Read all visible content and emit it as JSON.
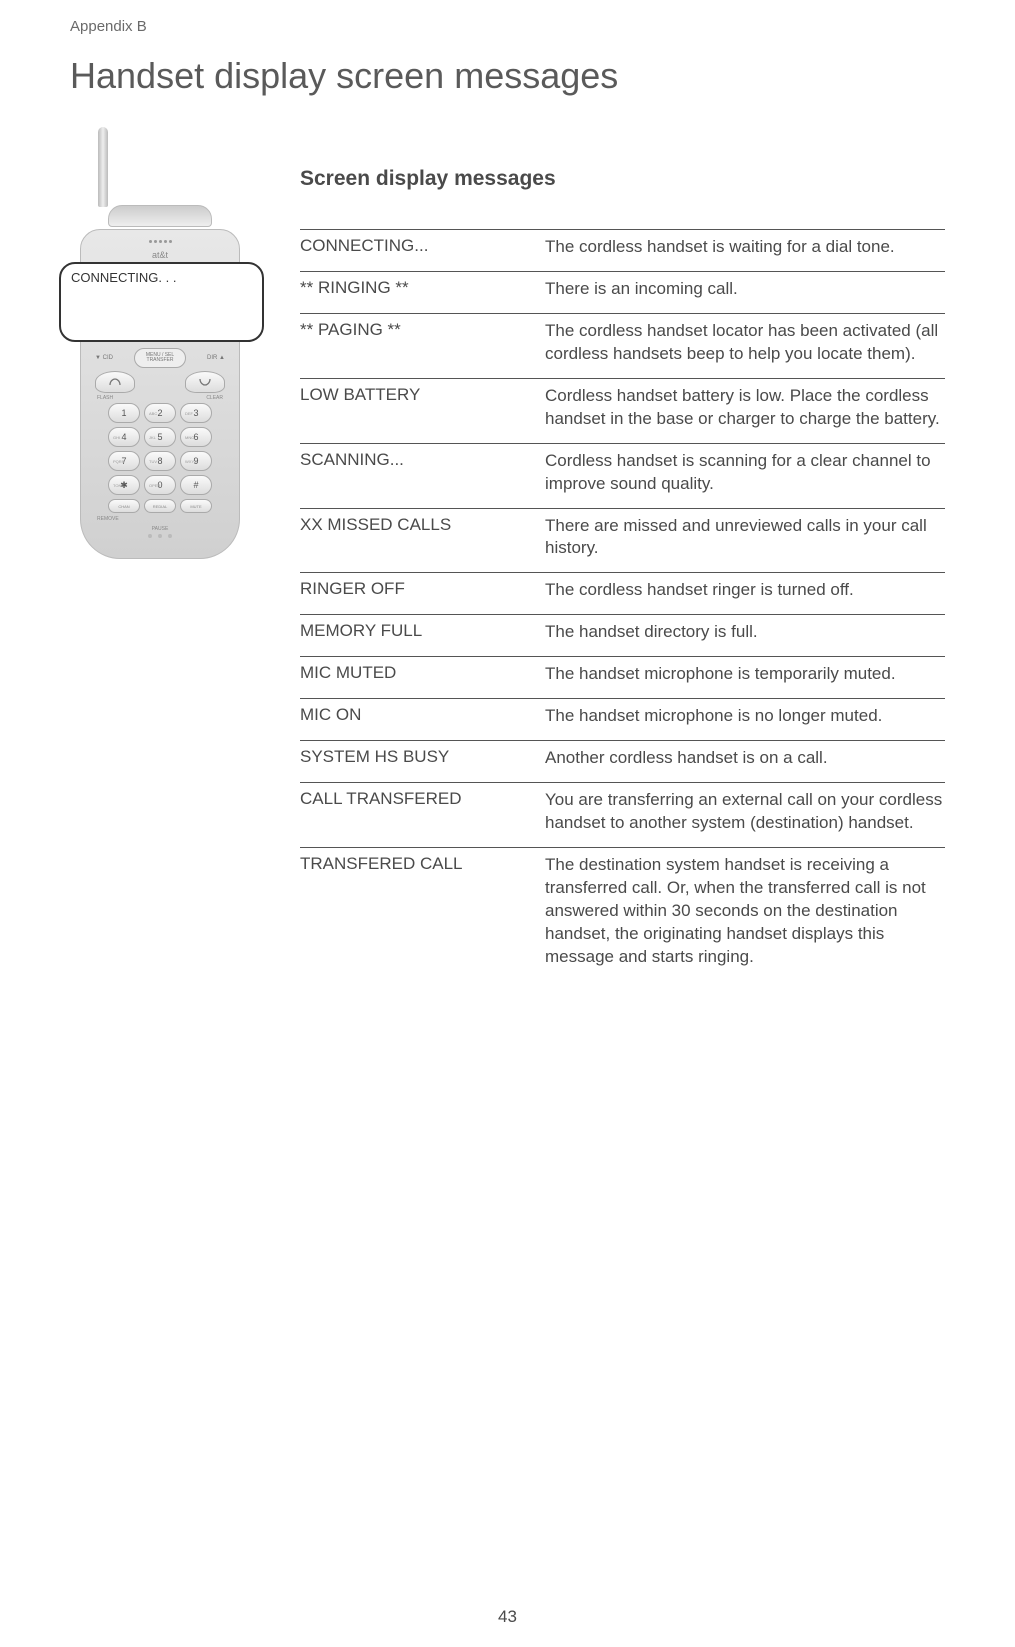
{
  "appendix_label": "Appendix B",
  "page_title": "Handset display screen messages",
  "section_title": "Screen display messages",
  "handset": {
    "screen_text": "CONNECTING. . .",
    "brand": "at&t",
    "nav_left": "▼ CID",
    "nav_right": "DIR ▲",
    "nav_center": "MENU / SEL\nTRANSFER",
    "flash": "FLASH",
    "clear": "CLEAR",
    "remove": "REMOVE",
    "pause": "PAUSE",
    "keys": [
      {
        "sub": "",
        "n": "1"
      },
      {
        "sub": "ABC",
        "n": "2"
      },
      {
        "sub": "DEF",
        "n": "3"
      },
      {
        "sub": "GHI",
        "n": "4"
      },
      {
        "sub": "JKL",
        "n": "5"
      },
      {
        "sub": "MNO",
        "n": "6"
      },
      {
        "sub": "PQRS",
        "n": "7"
      },
      {
        "sub": "TUV",
        "n": "8"
      },
      {
        "sub": "WXYZ",
        "n": "9"
      },
      {
        "sub": "TONE",
        "n": "✱"
      },
      {
        "sub": "OPER",
        "n": "0"
      },
      {
        "sub": "",
        "n": "#"
      }
    ],
    "func": [
      "CHAN",
      "REDIAL",
      "MUTE"
    ]
  },
  "messages": [
    {
      "term": "CONNECTING...",
      "desc": "The cordless handset is waiting for a dial tone."
    },
    {
      "term": "** RINGING **",
      "desc": "There is an incoming call."
    },
    {
      "term": "** PAGING **",
      "desc": "The cordless handset locator has been activated (all cordless handsets beep to help you locate them)."
    },
    {
      "term": "LOW BATTERY",
      "desc": "Cordless handset battery is low. Place the cordless handset in the base or charger to charge the battery."
    },
    {
      "term": "SCANNING...",
      "desc": "Cordless handset is scanning for a clear channel to improve sound quality."
    },
    {
      "term": "XX MISSED CALLS",
      "desc": "There are missed and unreviewed calls in your call history."
    },
    {
      "term": "RINGER OFF",
      "desc": "The cordless handset ringer is turned off."
    },
    {
      "term": "MEMORY FULL",
      "desc": "The handset directory is full."
    },
    {
      "term": "MIC MUTED",
      "desc": "The handset microphone is temporarily muted."
    },
    {
      "term": "MIC ON",
      "desc": "The handset microphone is no longer muted."
    },
    {
      "term": "SYSTEM HS BUSY",
      "desc": "Another cordless handset is on a call."
    },
    {
      "term": "CALL TRANSFERED",
      "desc": "You are transferring an external call on your cordless handset to another system (destination) handset."
    },
    {
      "term": "TRANSFERED CALL",
      "desc": "The destination system handset is receiving a transferred call. Or, when the transferred call is not answered within 30 seconds on the destination handset, the originating handset displays this message and starts ringing."
    }
  ],
  "page_number": "43",
  "colors": {
    "text": "#4a4a4a",
    "rule": "#555555",
    "light": "#6a6a6a"
  }
}
